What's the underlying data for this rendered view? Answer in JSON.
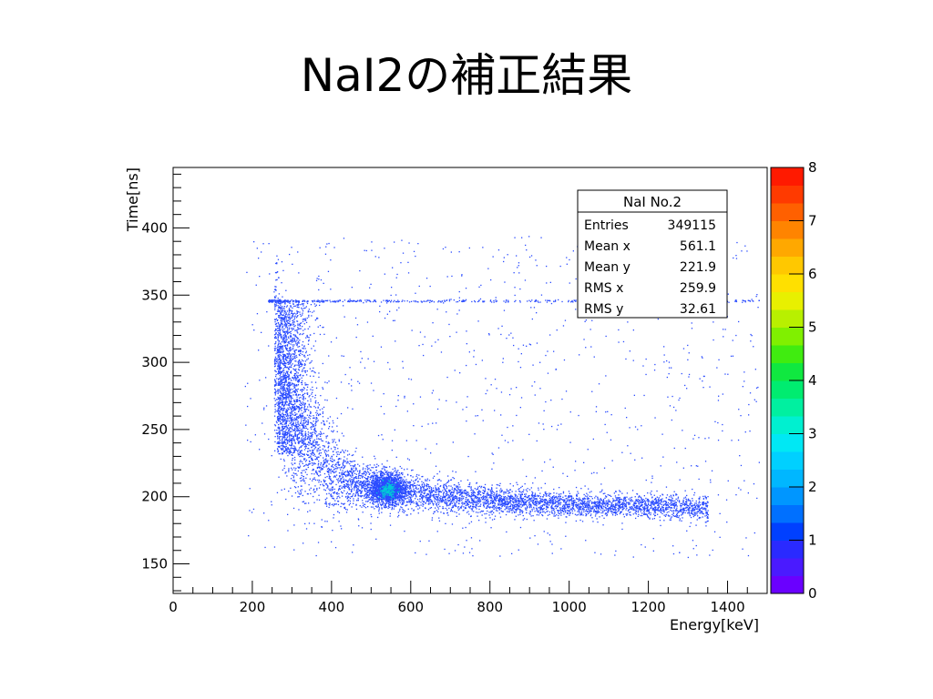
{
  "slide": {
    "title": "NaI2の補正結果"
  },
  "chart_data": {
    "type": "heatmap",
    "xlabel": "Energy[keV]",
    "ylabel": "Time[ns]",
    "xlim": [
      0,
      1500
    ],
    "ylim": [
      128,
      445
    ],
    "xticks": [
      0,
      200,
      400,
      600,
      800,
      1000,
      1200,
      1400
    ],
    "yticks": [
      150,
      200,
      250,
      300,
      350,
      400
    ],
    "colorbar": {
      "min": 0,
      "max": 8,
      "ticks": [
        0,
        1,
        2,
        3,
        4,
        5,
        6,
        7,
        8
      ]
    },
    "stats": {
      "name": "NaI No.2",
      "rows": [
        {
          "label": "Entries",
          "value": "349115"
        },
        {
          "label": "Mean x",
          "value": "561.1"
        },
        {
          "label": "Mean y",
          "value": "221.9"
        },
        {
          "label": "RMS x",
          "value": "259.9"
        },
        {
          "label": "RMS y",
          "value": "32.61"
        }
      ]
    },
    "features": {
      "time_walk_curve": [
        [
          260,
          300
        ],
        [
          280,
          268
        ],
        [
          300,
          250
        ],
        [
          330,
          238
        ],
        [
          360,
          228
        ],
        [
          400,
          218
        ],
        [
          450,
          212
        ],
        [
          500,
          208
        ],
        [
          540,
          206
        ],
        [
          600,
          203
        ],
        [
          700,
          200
        ],
        [
          800,
          198
        ],
        [
          900,
          196
        ],
        [
          1000,
          195
        ],
        [
          1100,
          194
        ],
        [
          1200,
          193
        ],
        [
          1300,
          193
        ],
        [
          1340,
          192
        ]
      ],
      "photopeak": {
        "energy": 540,
        "time": 206,
        "max_count": 2.5
      },
      "saturation_line": {
        "time": 346,
        "energy_range": [
          240,
          1480
        ]
      }
    },
    "grid": false,
    "legend": "top-right"
  },
  "colors": {
    "scale": [
      "#6a00ff",
      "#4a1aff",
      "#2a2aff",
      "#0040ff",
      "#0070ff",
      "#0096ff",
      "#00b7ff",
      "#00d0ff",
      "#00e8f4",
      "#00f0d0",
      "#00f0a0",
      "#00ec70",
      "#10e840",
      "#40ec10",
      "#80f000",
      "#b8f000",
      "#e8f000",
      "#ffe000",
      "#ffc800",
      "#ffa800",
      "#ff8400",
      "#ff6000",
      "#ff3a00",
      "#ff1a00"
    ]
  }
}
